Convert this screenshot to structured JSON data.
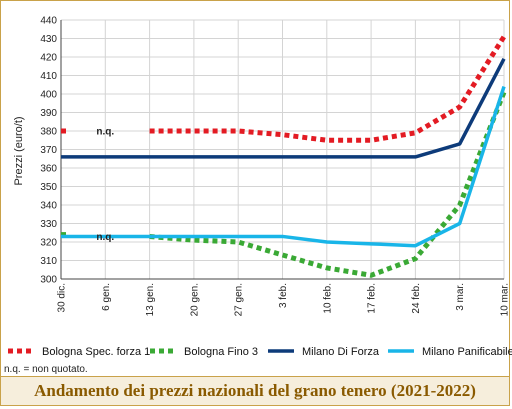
{
  "chart_data": {
    "type": "line",
    "title": "Andamento dei prezzi nazionali del grano tenero (2021-2022)",
    "ylabel": "Prezzi (euro/t)",
    "xlabel": "",
    "ylim": [
      300,
      440
    ],
    "yticks": [
      300,
      310,
      320,
      330,
      340,
      350,
      360,
      370,
      380,
      390,
      400,
      410,
      420,
      430,
      440
    ],
    "grid": "y-major",
    "categories": [
      "30 dic.",
      "6 gen.",
      "13 gen.",
      "20 gen.",
      "27 gen.",
      "3 feb.",
      "10 feb.",
      "17 feb.",
      "24 feb.",
      "3 mar.",
      "10 mar."
    ],
    "series": [
      {
        "name": "Bologna Spec. forza 1",
        "color": "#e31b23",
        "style": "dotted",
        "values": [
          380,
          null,
          380,
          380,
          380,
          378,
          375,
          375,
          379,
          393,
          431
        ]
      },
      {
        "name": "Bologna Fino 3",
        "color": "#3aa935",
        "style": "dotted",
        "values": [
          324,
          null,
          323,
          321,
          320,
          313,
          306,
          302,
          311,
          340,
          401
        ]
      },
      {
        "name": "Milano Di Forza",
        "color": "#0d3b7a",
        "style": "solid",
        "values": [
          366,
          366,
          366,
          366,
          366,
          366,
          366,
          366,
          366,
          373,
          419
        ]
      },
      {
        "name": "Milano Panificabile",
        "color": "#19b5e8",
        "style": "solid",
        "values": [
          323,
          323,
          323,
          323,
          323,
          323,
          320,
          319,
          318,
          330,
          404
        ]
      }
    ],
    "annotations": [
      {
        "text": "n.q.",
        "x": "6 gen.",
        "y": 380
      },
      {
        "text": "n.q.",
        "x": "6 gen.",
        "y": 323
      }
    ],
    "legend": "bottom"
  },
  "note": "n.q. = non quotato."
}
